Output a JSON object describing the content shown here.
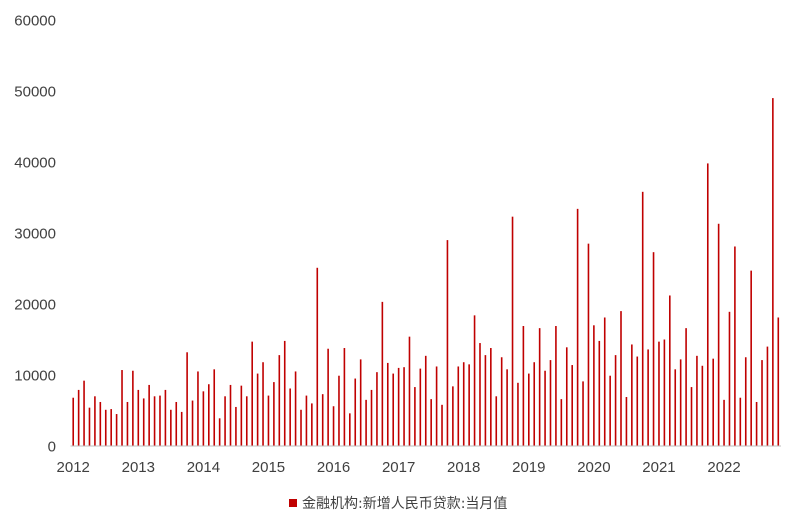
{
  "chart_data": {
    "type": "bar",
    "ylim": [
      0,
      60000
    ],
    "yticks": [
      0,
      10000,
      20000,
      30000,
      40000,
      50000,
      60000
    ],
    "xticks": [
      {
        "label": "2012",
        "x": "2012-04"
      },
      {
        "label": "2013",
        "x": "2013-04"
      },
      {
        "label": "2014",
        "x": "2014-04"
      },
      {
        "label": "2015",
        "x": "2015-04"
      },
      {
        "label": "2016",
        "x": "2016-04"
      },
      {
        "label": "2017",
        "x": "2017-04"
      },
      {
        "label": "2018",
        "x": "2018-04"
      },
      {
        "label": "2019",
        "x": "2019-04"
      },
      {
        "label": "2020",
        "x": "2020-04"
      },
      {
        "label": "2021",
        "x": "2021-04"
      },
      {
        "label": "2022",
        "x": "2022-04"
      }
    ],
    "x": [
      "2012-04",
      "2012-05",
      "2012-06",
      "2012-07",
      "2012-08",
      "2012-09",
      "2012-10",
      "2012-11",
      "2012-12",
      "2013-01",
      "2013-02",
      "2013-03",
      "2013-04",
      "2013-05",
      "2013-06",
      "2013-07",
      "2013-08",
      "2013-09",
      "2013-10",
      "2013-11",
      "2013-12",
      "2014-01",
      "2014-02",
      "2014-03",
      "2014-04",
      "2014-05",
      "2014-06",
      "2014-07",
      "2014-08",
      "2014-09",
      "2014-10",
      "2014-11",
      "2014-12",
      "2015-01",
      "2015-02",
      "2015-03",
      "2015-04",
      "2015-05",
      "2015-06",
      "2015-07",
      "2015-08",
      "2015-09",
      "2015-10",
      "2015-11",
      "2015-12",
      "2016-01",
      "2016-02",
      "2016-03",
      "2016-04",
      "2016-05",
      "2016-06",
      "2016-07",
      "2016-08",
      "2016-09",
      "2016-10",
      "2016-11",
      "2016-12",
      "2017-01",
      "2017-02",
      "2017-03",
      "2017-04",
      "2017-05",
      "2017-06",
      "2017-07",
      "2017-08",
      "2017-09",
      "2017-10",
      "2017-11",
      "2017-12",
      "2018-01",
      "2018-02",
      "2018-03",
      "2018-04",
      "2018-05",
      "2018-06",
      "2018-07",
      "2018-08",
      "2018-09",
      "2018-10",
      "2018-11",
      "2018-12",
      "2019-01",
      "2019-02",
      "2019-03",
      "2019-04",
      "2019-05",
      "2019-06",
      "2019-07",
      "2019-08",
      "2019-09",
      "2019-10",
      "2019-11",
      "2019-12",
      "2020-01",
      "2020-02",
      "2020-03",
      "2020-04",
      "2020-05",
      "2020-06",
      "2020-07",
      "2020-08",
      "2020-09",
      "2020-10",
      "2020-11",
      "2020-12",
      "2021-01",
      "2021-02",
      "2021-03",
      "2021-04",
      "2021-05",
      "2021-06",
      "2021-07",
      "2021-08",
      "2021-09",
      "2021-10",
      "2021-11",
      "2021-12",
      "2022-01",
      "2022-02",
      "2022-03",
      "2022-04",
      "2022-05",
      "2022-06",
      "2022-07",
      "2022-08",
      "2022-09",
      "2022-10",
      "2022-11",
      "2022-12",
      "2023-01",
      "2023-02"
    ],
    "series": [
      {
        "name": "金融机构:新增人民币贷款:当月值",
        "color": "#c00000",
        "values": [
          6800,
          7900,
          9200,
          5400,
          7000,
          6200,
          5100,
          5200,
          4500,
          10700,
          6200,
          10600,
          7900,
          6700,
          8600,
          7000,
          7100,
          7900,
          5100,
          6200,
          4800,
          13200,
          6400,
          10500,
          7700,
          8700,
          10800,
          3900,
          7000,
          8600,
          5500,
          8500,
          7000,
          14700,
          10200,
          11800,
          7100,
          9000,
          12800,
          14800,
          8100,
          10500,
          5100,
          7100,
          6000,
          25100,
          7300,
          13700,
          5600,
          9900,
          13800,
          4600,
          9500,
          12200,
          6500,
          7900,
          10400,
          20300,
          11700,
          10200,
          11000,
          11100,
          15400,
          8300,
          10900,
          12700,
          6600,
          11200,
          5800,
          29000,
          8400,
          11200,
          11800,
          11500,
          18400,
          14500,
          12800,
          13800,
          7000,
          12500,
          10800,
          32300,
          8900,
          16900,
          10200,
          11800,
          16600,
          10600,
          12100,
          16900,
          6600,
          13900,
          11400,
          33400,
          9100,
          28500,
          17000,
          14800,
          18100,
          9900,
          12800,
          19000,
          6900,
          14300,
          12600,
          35800,
          13600,
          27300,
          14700,
          15000,
          21200,
          10800,
          12200,
          16600,
          8300,
          12700,
          11300,
          39800,
          12300,
          31300,
          6500,
          18900,
          28100,
          6800,
          12500,
          24700,
          6200,
          12100,
          14000,
          49000,
          18100
        ]
      }
    ],
    "legend": "bottom",
    "grid": false
  }
}
